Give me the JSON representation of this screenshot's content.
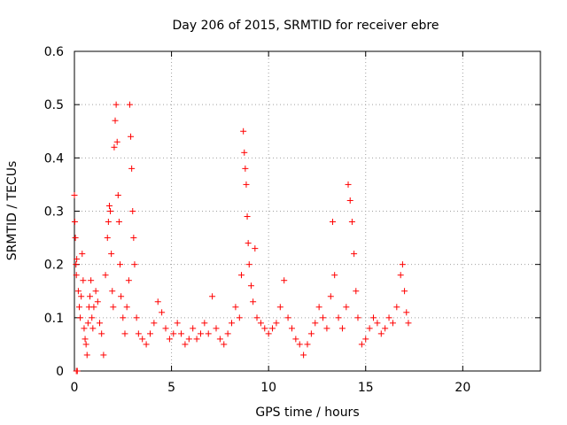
{
  "chart_data": {
    "type": "scatter",
    "title": "Day 206 of 2015, SRMTID for receiver ebre",
    "xlabel": "GPS time / hours",
    "ylabel": "SRMTID / TECUs",
    "xlim": [
      0,
      24
    ],
    "ylim": [
      0,
      0.6
    ],
    "xticks": [
      0,
      5,
      10,
      15,
      20
    ],
    "xtick_labels": [
      "0",
      "5",
      "10",
      "15",
      "20"
    ],
    "yticks": [
      0,
      0.1,
      0.2,
      0.3,
      0.4,
      0.5,
      0.6
    ],
    "ytick_labels": [
      "0",
      "0.1",
      "0.2",
      "0.3",
      "0.4",
      "0.5",
      "0.6"
    ],
    "grid": true,
    "marker": "+",
    "color": "#ff0000",
    "series": [
      {
        "name": "SRMTID",
        "points": [
          [
            0.0,
            0.33
          ],
          [
            0.02,
            0.28
          ],
          [
            0.05,
            0.25
          ],
          [
            0.08,
            0.2
          ],
          [
            0.1,
            0.18
          ],
          [
            0.12,
            0.21
          ],
          [
            0.1,
            0.0
          ],
          [
            0.15,
            0.0
          ],
          [
            0.2,
            0.15
          ],
          [
            0.25,
            0.12
          ],
          [
            0.3,
            0.1
          ],
          [
            0.35,
            0.14
          ],
          [
            0.4,
            0.22
          ],
          [
            0.45,
            0.17
          ],
          [
            0.5,
            0.08
          ],
          [
            0.55,
            0.06
          ],
          [
            0.6,
            0.05
          ],
          [
            0.65,
            0.03
          ],
          [
            0.7,
            0.09
          ],
          [
            0.75,
            0.12
          ],
          [
            0.8,
            0.14
          ],
          [
            0.85,
            0.17
          ],
          [
            0.9,
            0.1
          ],
          [
            0.95,
            0.08
          ],
          [
            1.0,
            0.12
          ],
          [
            1.1,
            0.15
          ],
          [
            1.2,
            0.13
          ],
          [
            1.3,
            0.09
          ],
          [
            1.4,
            0.07
          ],
          [
            1.5,
            0.03
          ],
          [
            1.6,
            0.18
          ],
          [
            1.7,
            0.25
          ],
          [
            1.75,
            0.28
          ],
          [
            1.8,
            0.31
          ],
          [
            1.85,
            0.3
          ],
          [
            1.9,
            0.22
          ],
          [
            1.95,
            0.15
          ],
          [
            2.0,
            0.12
          ],
          [
            2.05,
            0.42
          ],
          [
            2.1,
            0.47
          ],
          [
            2.15,
            0.5
          ],
          [
            2.2,
            0.43
          ],
          [
            2.25,
            0.33
          ],
          [
            2.3,
            0.28
          ],
          [
            2.35,
            0.2
          ],
          [
            2.4,
            0.14
          ],
          [
            2.5,
            0.1
          ],
          [
            2.6,
            0.07
          ],
          [
            2.7,
            0.12
          ],
          [
            2.8,
            0.17
          ],
          [
            2.85,
            0.5
          ],
          [
            2.9,
            0.44
          ],
          [
            2.95,
            0.38
          ],
          [
            3.0,
            0.3
          ],
          [
            3.05,
            0.25
          ],
          [
            3.1,
            0.2
          ],
          [
            3.2,
            0.1
          ],
          [
            3.3,
            0.07
          ],
          [
            3.5,
            0.06
          ],
          [
            3.7,
            0.05
          ],
          [
            3.9,
            0.07
          ],
          [
            4.1,
            0.09
          ],
          [
            4.3,
            0.13
          ],
          [
            4.5,
            0.11
          ],
          [
            4.7,
            0.08
          ],
          [
            4.9,
            0.06
          ],
          [
            5.1,
            0.07
          ],
          [
            5.3,
            0.09
          ],
          [
            5.5,
            0.07
          ],
          [
            5.7,
            0.05
          ],
          [
            5.9,
            0.06
          ],
          [
            6.1,
            0.08
          ],
          [
            6.3,
            0.06
          ],
          [
            6.5,
            0.07
          ],
          [
            6.7,
            0.09
          ],
          [
            6.9,
            0.07
          ],
          [
            7.1,
            0.14
          ],
          [
            7.3,
            0.08
          ],
          [
            7.5,
            0.06
          ],
          [
            7.7,
            0.05
          ],
          [
            7.9,
            0.07
          ],
          [
            8.1,
            0.09
          ],
          [
            8.3,
            0.12
          ],
          [
            8.5,
            0.1
          ],
          [
            8.6,
            0.18
          ],
          [
            8.7,
            0.45
          ],
          [
            8.75,
            0.41
          ],
          [
            8.8,
            0.38
          ],
          [
            8.85,
            0.35
          ],
          [
            8.9,
            0.29
          ],
          [
            8.95,
            0.24
          ],
          [
            9.0,
            0.2
          ],
          [
            9.1,
            0.16
          ],
          [
            9.2,
            0.13
          ],
          [
            9.3,
            0.23
          ],
          [
            9.4,
            0.1
          ],
          [
            9.6,
            0.09
          ],
          [
            9.8,
            0.08
          ],
          [
            10.0,
            0.07
          ],
          [
            10.2,
            0.08
          ],
          [
            10.4,
            0.09
          ],
          [
            10.6,
            0.12
          ],
          [
            10.8,
            0.17
          ],
          [
            11.0,
            0.1
          ],
          [
            11.2,
            0.08
          ],
          [
            11.4,
            0.06
          ],
          [
            11.6,
            0.05
          ],
          [
            11.8,
            0.03
          ],
          [
            12.0,
            0.05
          ],
          [
            12.2,
            0.07
          ],
          [
            12.4,
            0.09
          ],
          [
            12.6,
            0.12
          ],
          [
            12.8,
            0.1
          ],
          [
            13.0,
            0.08
          ],
          [
            13.2,
            0.14
          ],
          [
            13.3,
            0.28
          ],
          [
            13.4,
            0.18
          ],
          [
            13.6,
            0.1
          ],
          [
            13.8,
            0.08
          ],
          [
            14.0,
            0.12
          ],
          [
            14.1,
            0.35
          ],
          [
            14.2,
            0.32
          ],
          [
            14.3,
            0.28
          ],
          [
            14.4,
            0.22
          ],
          [
            14.5,
            0.15
          ],
          [
            14.6,
            0.1
          ],
          [
            14.8,
            0.05
          ],
          [
            15.0,
            0.06
          ],
          [
            15.2,
            0.08
          ],
          [
            15.4,
            0.1
          ],
          [
            15.6,
            0.09
          ],
          [
            15.8,
            0.07
          ],
          [
            16.0,
            0.08
          ],
          [
            16.2,
            0.1
          ],
          [
            16.4,
            0.09
          ],
          [
            16.6,
            0.12
          ],
          [
            16.8,
            0.18
          ],
          [
            16.9,
            0.2
          ],
          [
            17.0,
            0.15
          ],
          [
            17.1,
            0.11
          ],
          [
            17.2,
            0.09
          ]
        ]
      }
    ]
  }
}
